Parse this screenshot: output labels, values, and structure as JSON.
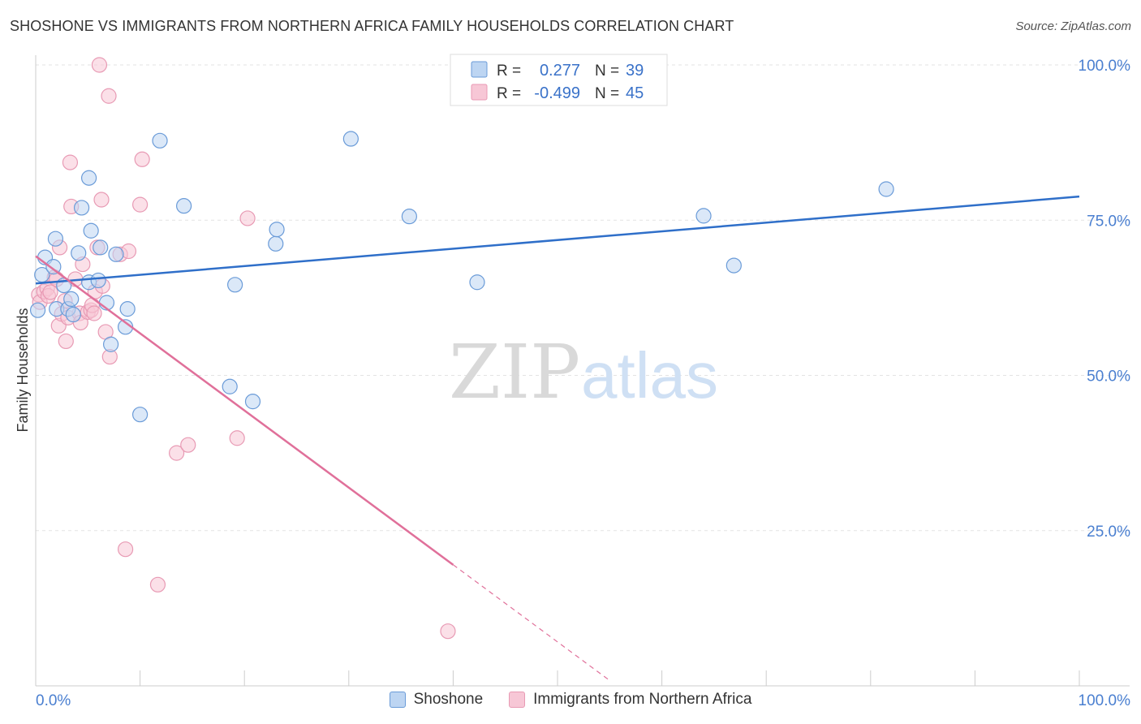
{
  "header": {
    "title": "SHOSHONE VS IMMIGRANTS FROM NORTHERN AFRICA FAMILY HOUSEHOLDS CORRELATION CHART",
    "source": "Source: ZipAtlas.com"
  },
  "colors": {
    "blue": "#6a9bd8",
    "blue_fill": "#bdd5f2",
    "blue_line": "#2f6fc9",
    "pink": "#e89ab4",
    "pink_fill": "#f7c7d6",
    "pink_line": "#e0709a",
    "axis_label": "#4a7fd0"
  },
  "legend": {
    "r_label": "R =",
    "n_label": "N =",
    "rows": [
      {
        "series": "Shoshone",
        "r": "0.277",
        "n": "39"
      },
      {
        "series": "Immigrants from Northern Africa",
        "r": "-0.499",
        "n": "45"
      }
    ]
  },
  "watermark": {
    "part1": "ZIP",
    "part2": "atlas"
  },
  "chart_data": {
    "type": "scatter",
    "title": "SHOSHONE VS IMMIGRANTS FROM NORTHERN AFRICA FAMILY HOUSEHOLDS CORRELATION CHART",
    "xlabel": "",
    "ylabel": "Family Households",
    "xlim": [
      0,
      100
    ],
    "ylim": [
      0,
      102
    ],
    "x_tick_labels": [
      "0.0%",
      "100.0%"
    ],
    "y_ticks": [
      25,
      50,
      75,
      100
    ],
    "y_tick_labels": [
      "25.0%",
      "50.0%",
      "75.0%",
      "100.0%"
    ],
    "grid": true,
    "legend_position": "top-center",
    "series": [
      {
        "name": "Shoshone",
        "color": "#6a9bd8",
        "trend": {
          "x0": 0,
          "y0": 64.8,
          "x1": 100,
          "y1": 78.8
        },
        "points": [
          [
            0.2,
            60.5
          ],
          [
            0.6,
            66.2
          ],
          [
            0.9,
            69.0
          ],
          [
            1.7,
            67.5
          ],
          [
            1.9,
            72.0
          ],
          [
            2.0,
            60.7
          ],
          [
            2.7,
            64.5
          ],
          [
            3.1,
            60.7
          ],
          [
            3.4,
            62.3
          ],
          [
            3.6,
            59.8
          ],
          [
            4.1,
            69.7
          ],
          [
            4.4,
            77.0
          ],
          [
            5.1,
            65.0
          ],
          [
            5.1,
            81.8
          ],
          [
            5.3,
            73.3
          ],
          [
            6.0,
            65.3
          ],
          [
            6.2,
            70.6
          ],
          [
            6.8,
            61.7
          ],
          [
            7.2,
            55.0
          ],
          [
            7.7,
            69.5
          ],
          [
            8.6,
            57.8
          ],
          [
            8.8,
            60.7
          ],
          [
            10.0,
            43.7
          ],
          [
            11.9,
            87.8
          ],
          [
            14.2,
            77.3
          ],
          [
            18.6,
            48.2
          ],
          [
            19.1,
            64.6
          ],
          [
            20.8,
            45.8
          ],
          [
            23.0,
            71.2
          ],
          [
            23.1,
            73.5
          ],
          [
            30.2,
            88.1
          ],
          [
            35.8,
            75.6
          ],
          [
            42.3,
            65.0
          ],
          [
            64.0,
            75.7
          ],
          [
            66.9,
            67.7
          ],
          [
            81.5,
            80.0
          ]
        ]
      },
      {
        "name": "Immigrants from Northern Africa",
        "color": "#e89ab4",
        "trend": {
          "x0": 0,
          "y0": 69.2,
          "x1": 40,
          "y1": 19.5,
          "dash_to_x": 55
        },
        "points": [
          [
            0.3,
            63.0
          ],
          [
            0.4,
            61.8
          ],
          [
            0.8,
            63.5
          ],
          [
            1.1,
            64.0
          ],
          [
            1.2,
            62.8
          ],
          [
            1.4,
            63.4
          ],
          [
            1.8,
            65.8
          ],
          [
            2.0,
            65.5
          ],
          [
            2.2,
            58.0
          ],
          [
            2.3,
            70.6
          ],
          [
            2.5,
            59.9
          ],
          [
            2.8,
            62.0
          ],
          [
            2.9,
            55.5
          ],
          [
            3.1,
            59.3
          ],
          [
            3.3,
            84.3
          ],
          [
            3.4,
            77.2
          ],
          [
            3.8,
            65.5
          ],
          [
            4.2,
            60.0
          ],
          [
            4.3,
            58.5
          ],
          [
            4.5,
            67.9
          ],
          [
            5.0,
            60.2
          ],
          [
            5.3,
            60.5
          ],
          [
            5.4,
            61.3
          ],
          [
            5.6,
            60.0
          ],
          [
            5.7,
            63.5
          ],
          [
            5.9,
            70.6
          ],
          [
            6.1,
            100.0
          ],
          [
            6.3,
            78.3
          ],
          [
            6.4,
            64.4
          ],
          [
            6.7,
            57.0
          ],
          [
            7.0,
            95.0
          ],
          [
            7.1,
            53.0
          ],
          [
            8.1,
            69.5
          ],
          [
            8.6,
            22.0
          ],
          [
            8.9,
            70.0
          ],
          [
            10.0,
            77.5
          ],
          [
            10.2,
            84.8
          ],
          [
            11.7,
            16.3
          ],
          [
            13.5,
            37.5
          ],
          [
            14.6,
            38.8
          ],
          [
            19.3,
            39.9
          ],
          [
            20.3,
            75.3
          ],
          [
            39.5,
            8.8
          ]
        ]
      }
    ]
  }
}
